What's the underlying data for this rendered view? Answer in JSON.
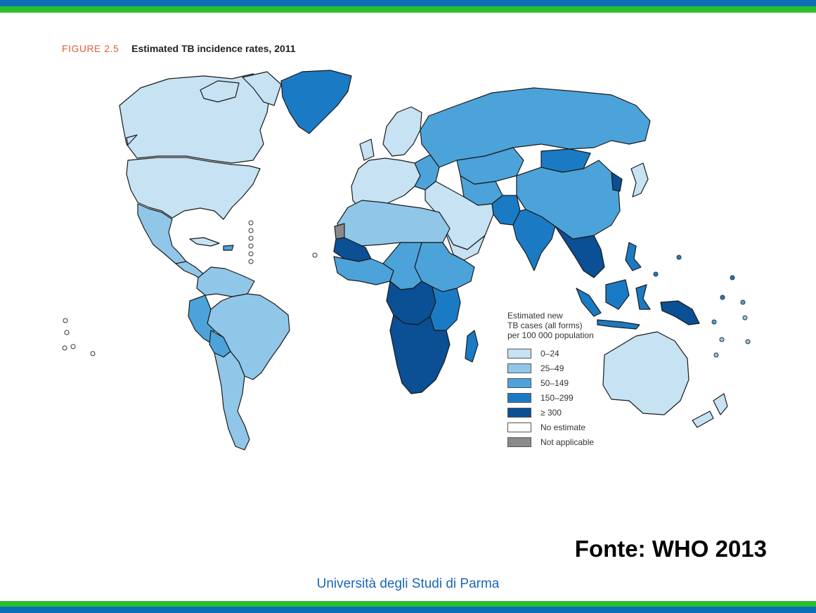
{
  "figure": {
    "label": "FIGURE 2.5",
    "caption": "Estimated TB incidence rates, 2011"
  },
  "legend": {
    "title_lines": [
      "Estimated new",
      "TB cases (all forms)",
      "per 100 000 population"
    ],
    "items": [
      {
        "label": "0–24",
        "color": "#c6e2f3"
      },
      {
        "label": "25–49",
        "color": "#90c7e9"
      },
      {
        "label": "50–149",
        "color": "#4ba3d9"
      },
      {
        "label": "150–299",
        "color": "#1a7bc4"
      },
      {
        "label": "≥ 300",
        "color": "#0b4f94"
      },
      {
        "label": "No estimate",
        "color": "#ffffff"
      },
      {
        "label": "Not applicable",
        "color": "#8a8a8a"
      }
    ]
  },
  "colors": {
    "band_blue": "#0b6fb8",
    "band_green": "#2bbf2b",
    "border": "#1a1a1a"
  },
  "source": "Fonte:  WHO 2013",
  "footer": "Università degli Studi di Parma"
}
